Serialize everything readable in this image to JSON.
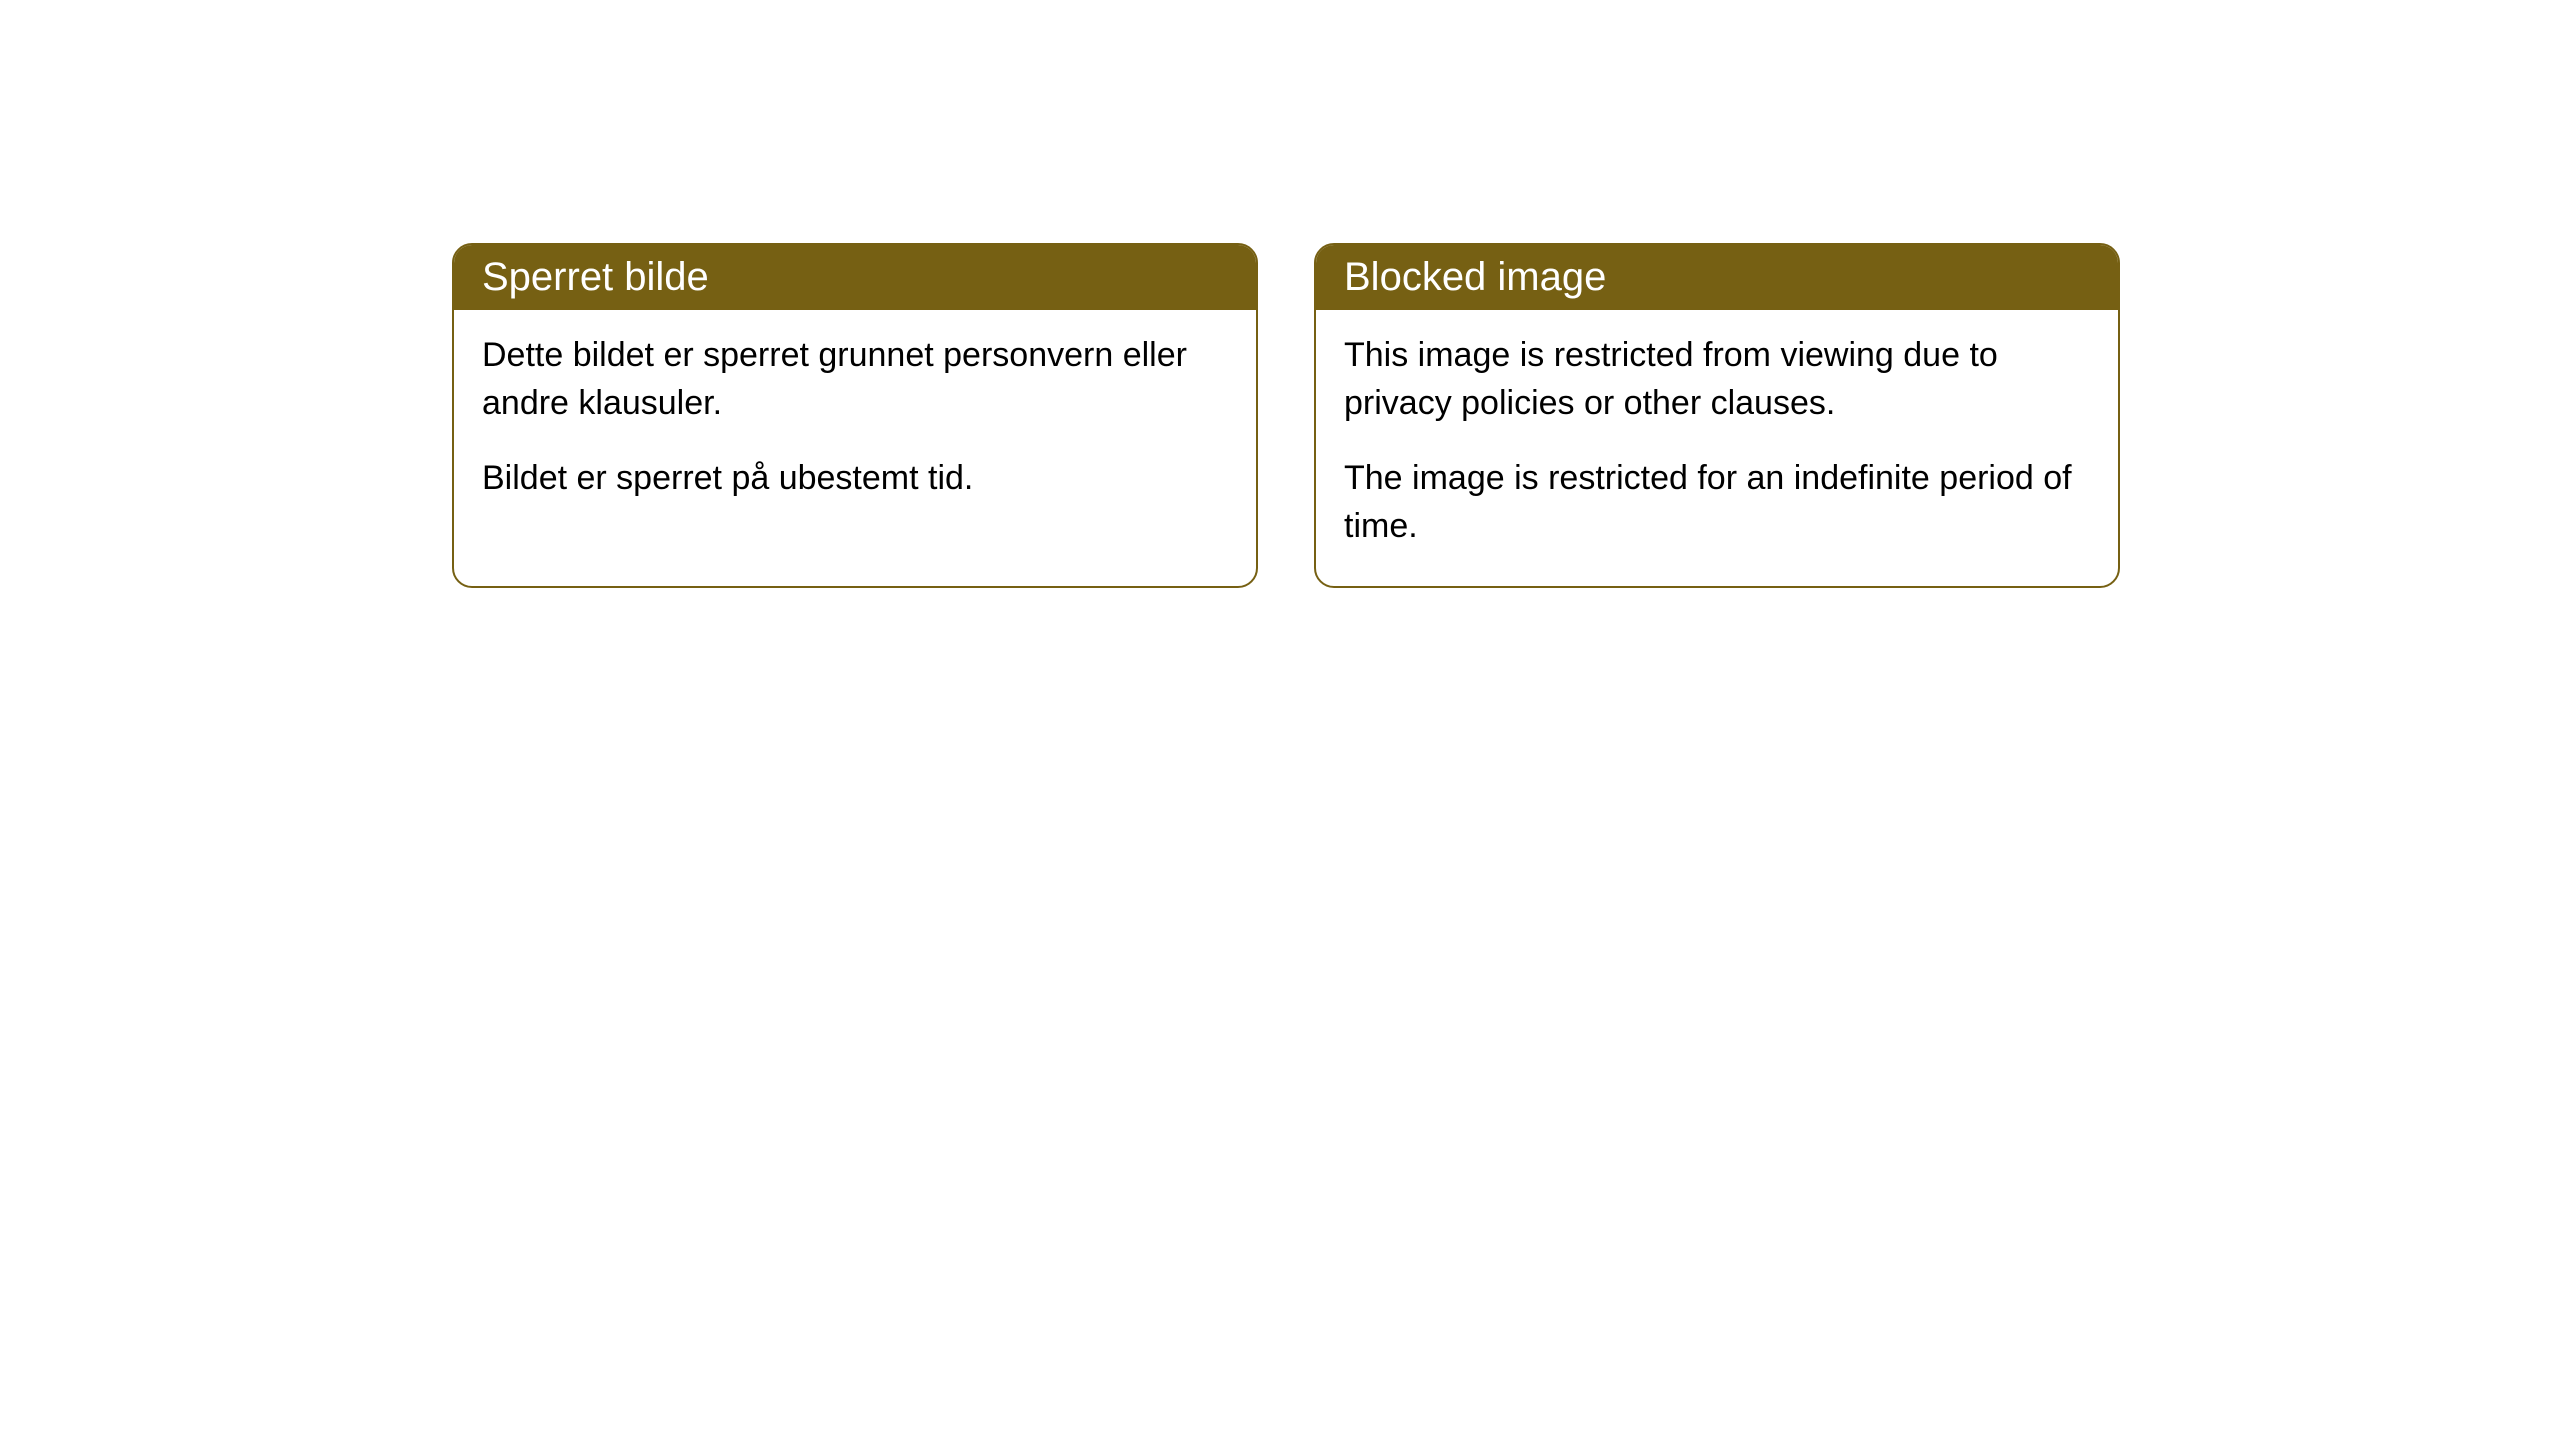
{
  "cards": [
    {
      "title": "Sperret bilde",
      "paragraph1": "Dette bildet er sperret grunnet personvern eller andre klausuler.",
      "paragraph2": "Bildet er sperret på ubestemt tid."
    },
    {
      "title": "Blocked image",
      "paragraph1": "This image is restricted from viewing due to privacy policies or other clauses.",
      "paragraph2": "The image is restricted for an indefinite period of time."
    }
  ],
  "styling": {
    "header_background": "#766013",
    "header_text_color": "#ffffff",
    "border_color": "#766013",
    "body_text_color": "#000000",
    "card_background": "#ffffff",
    "page_background": "#ffffff",
    "border_radius": 20,
    "header_fontsize": 40,
    "body_fontsize": 34
  }
}
